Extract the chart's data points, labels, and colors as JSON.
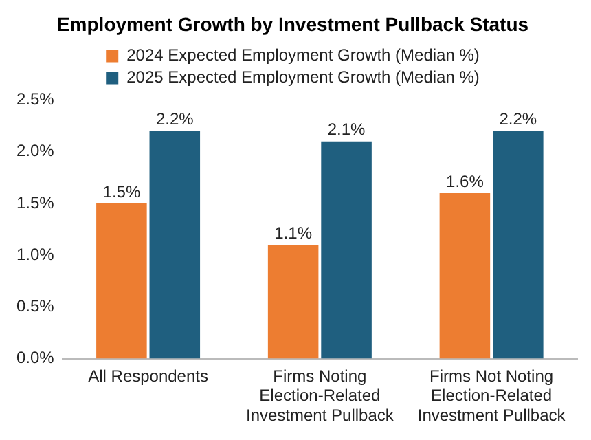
{
  "chart_data": {
    "type": "bar",
    "title": "Employment Growth by Investment Pullback Status",
    "categories": [
      "All Respondents",
      "Firms Noting Election-Related Investment Pullback",
      "Firms Not Noting Election-Related Investment Pullback"
    ],
    "series": [
      {
        "name": "2024 Expected Employment Growth (Median %)",
        "color": "#ed7d31",
        "values": [
          1.5,
          1.1,
          1.6
        ],
        "value_labels": [
          "1.5%",
          "1.1%",
          "1.6%"
        ]
      },
      {
        "name": "2025 Expected Employment Growth (Median %)",
        "color": "#1f5f7f",
        "values": [
          2.2,
          2.1,
          2.2
        ],
        "value_labels": [
          "2.2%",
          "2.1%",
          "2.2%"
        ]
      }
    ],
    "ylim": [
      0,
      2.5
    ],
    "yticks": [
      {
        "value": 0,
        "label": "0.0%"
      },
      {
        "value": 0.5,
        "label": "0.5%"
      },
      {
        "value": 1,
        "label": "1.0%"
      },
      {
        "value": 1.5,
        "label": "1.5%"
      },
      {
        "value": 2,
        "label": "2.0%"
      },
      {
        "value": 2.5,
        "label": "2.5%"
      }
    ],
    "grid": false,
    "legend": "top"
  }
}
